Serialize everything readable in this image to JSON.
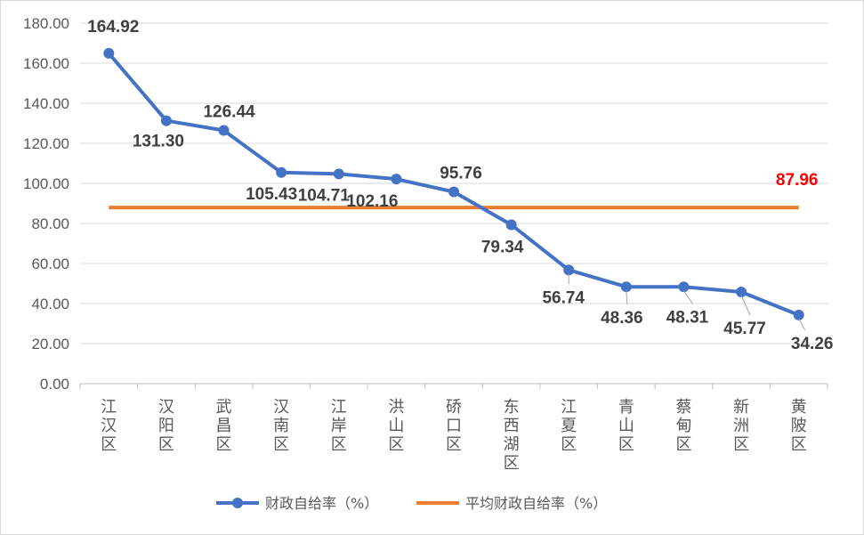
{
  "chart_data": {
    "type": "line",
    "categories": [
      "江汉区",
      "汉阳区",
      "武昌区",
      "汉南区",
      "江岸区",
      "洪山区",
      "硚口区",
      "东西湖区",
      "江夏区",
      "青山区",
      "蔡甸区",
      "新洲区",
      "黄陂区"
    ],
    "series": [
      {
        "name": "财政自给率（%）",
        "values": [
          164.92,
          131.3,
          126.44,
          105.43,
          104.71,
          102.16,
          95.76,
          79.34,
          56.74,
          48.36,
          48.31,
          45.77,
          34.26
        ],
        "labels": [
          "164.92",
          "131.30",
          "126.44",
          "105.43",
          "104.71",
          "102.16",
          "95.76",
          "79.34",
          "56.74",
          "48.36",
          "48.31",
          "45.77",
          "34.26"
        ],
        "color": "#4472C4"
      },
      {
        "name": "平均财政自给率（%）",
        "value": 87.96,
        "label": "87.96",
        "color": "#ED7D31",
        "label_color": "#FF0000"
      }
    ],
    "yticks": [
      "0.00",
      "20.00",
      "40.00",
      "60.00",
      "80.00",
      "100.00",
      "120.00",
      "140.00",
      "160.00",
      "180.00"
    ],
    "ylim": [
      0,
      180
    ],
    "grid": true,
    "legend": "bottom-center",
    "title": "",
    "xlabel": "",
    "ylabel": ""
  }
}
